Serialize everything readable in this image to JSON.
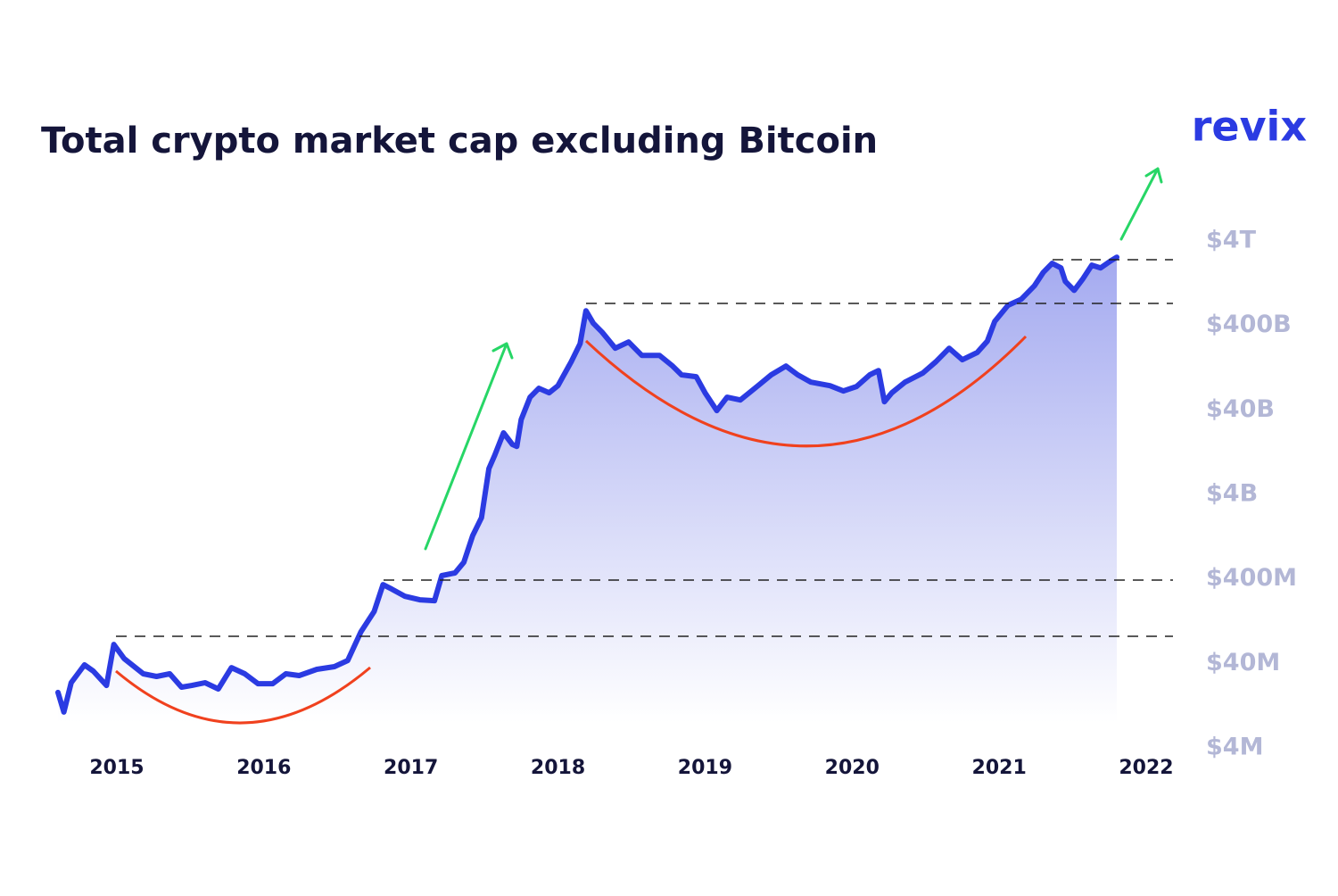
{
  "chart_data": {
    "type": "line",
    "title": "Total crypto market cap excluding Bitcoin",
    "brand": "revix",
    "color": "#2b3be2",
    "log_scale": true,
    "grid": false,
    "xlim": [
      2014.6,
      2022
    ],
    "xticks": [
      2015,
      2016,
      2017,
      2018,
      2019,
      2020,
      2021,
      2022
    ],
    "ylim": [
      4000000,
      4000000000000
    ],
    "yticks": [
      {
        "value": 4000000,
        "label": "$4M"
      },
      {
        "value": 40000000,
        "label": "$40M"
      },
      {
        "value": 400000000,
        "label": "$400M"
      },
      {
        "value": 4000000000,
        "label": "$4B"
      },
      {
        "value": 40000000000,
        "label": "$40B"
      },
      {
        "value": 400000000000,
        "label": "$400B"
      },
      {
        "value": 4000000000000,
        "label": "$4T"
      }
    ],
    "x": [
      2014.6,
      2014.64,
      2014.69,
      2014.78,
      2014.84,
      2014.93,
      2014.98,
      2015.05,
      2015.18,
      2015.27,
      2015.36,
      2015.44,
      2015.51,
      2015.6,
      2015.69,
      2015.78,
      2015.87,
      2015.96,
      2016.06,
      2016.15,
      2016.24,
      2016.36,
      2016.48,
      2016.57,
      2016.66,
      2016.75,
      2016.81,
      2016.87,
      2016.96,
      2017.06,
      2017.16,
      2017.21,
      2017.3,
      2017.36,
      2017.42,
      2017.48,
      2017.53,
      2017.57,
      2017.63,
      2017.69,
      2017.72,
      2017.75,
      2017.81,
      2017.87,
      2017.94,
      2018.0,
      2018.09,
      2018.15,
      2018.19,
      2018.24,
      2018.3,
      2018.39,
      2018.48,
      2018.57,
      2018.69,
      2018.78,
      2018.84,
      2018.94,
      2019.0,
      2019.08,
      2019.15,
      2019.24,
      2019.36,
      2019.45,
      2019.55,
      2019.63,
      2019.72,
      2019.85,
      2019.94,
      2020.03,
      2020.12,
      2020.18,
      2020.22,
      2020.27,
      2020.36,
      2020.48,
      2020.57,
      2020.66,
      2020.75,
      2020.85,
      2020.92,
      2020.97,
      2021.06,
      2021.15,
      2021.24,
      2021.3,
      2021.36,
      2021.42,
      2021.45,
      2021.51,
      2021.57,
      2021.63,
      2021.69,
      2021.76,
      2021.8
    ],
    "values": [
      18100000,
      10600000,
      23600000,
      38400000,
      32400000,
      21900000,
      67100000,
      45500000,
      30100000,
      28000000,
      30100000,
      20900000,
      21900000,
      23600000,
      19900000,
      35600000,
      30100000,
      23000000,
      23000000,
      30100000,
      28700000,
      34000000,
      36600000,
      43300000,
      94400000,
      165000000,
      342000000,
      303000000,
      249000000,
      226000000,
      221000000,
      437000000,
      470000000,
      628000000,
      1300000000,
      2120000000,
      8070000000,
      11600000000,
      21400000000,
      15600000000,
      14800000000,
      30800000000,
      56500000000,
      72100000000,
      63800000000,
      77400000000,
      149000000000,
      243000000000,
      597000000000,
      425000000000,
      333000000000,
      215000000000,
      255000000000,
      177000000000,
      177000000000,
      132000000000,
      104000000000,
      98900000000,
      63800000000,
      39300000000,
      56500000000,
      52500000000,
      77400000000,
      104000000000,
      132000000000,
      104000000000,
      85300000000,
      77400000000,
      67000000000,
      75700000000,
      104000000000,
      117000000000,
      50000000000,
      63800000000,
      85300000000,
      109000000000,
      149000000000,
      215000000000,
      157000000000,
      191000000000,
      261000000000,
      447000000000,
      692000000000,
      818000000000,
      1180000000000,
      1700000000000,
      2170000000000,
      1920000000000,
      1330000000000,
      1040000000000,
      1430000000000,
      2070000000000,
      1920000000000,
      2330000000000,
      2570000000000
    ]
  }
}
